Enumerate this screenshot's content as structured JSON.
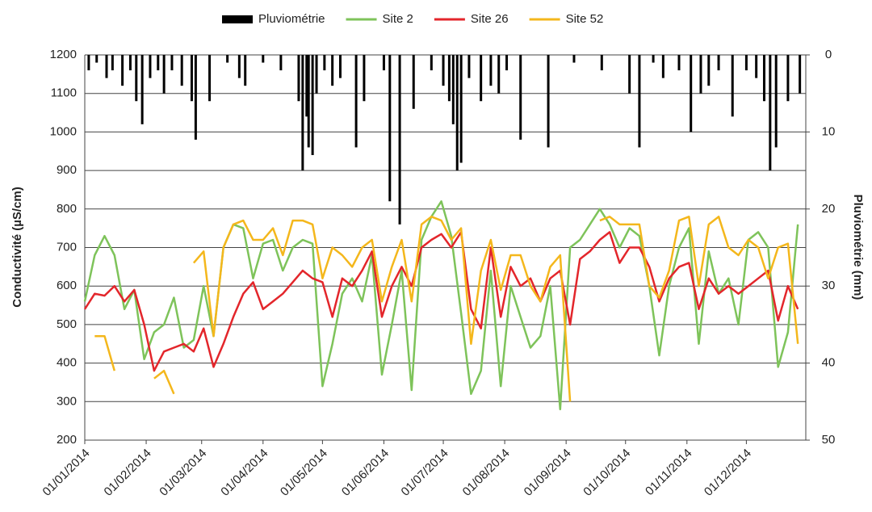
{
  "chart_data": {
    "type": "line",
    "y_label": "Conductivité (µS/cm)",
    "y2_label": "Pluviométrie (mm)",
    "legend_position": "top",
    "grid": true,
    "xlim": [
      "2014-01-01",
      "2014-12-31"
    ],
    "xticks": [
      {
        "value": "2014-01-01",
        "label": "01/01/2014"
      },
      {
        "value": "2014-02-01",
        "label": "01/02/2014"
      },
      {
        "value": "2014-03-01",
        "label": "01/03/2014"
      },
      {
        "value": "2014-04-01",
        "label": "01/04/2014"
      },
      {
        "value": "2014-05-01",
        "label": "01/05/2014"
      },
      {
        "value": "2014-06-01",
        "label": "01/06/2014"
      },
      {
        "value": "2014-07-01",
        "label": "01/07/2014"
      },
      {
        "value": "2014-08-01",
        "label": "01/08/2014"
      },
      {
        "value": "2014-09-01",
        "label": "01/09/2014"
      },
      {
        "value": "2014-10-01",
        "label": "01/10/2014"
      },
      {
        "value": "2014-11-01",
        "label": "01/11/2014"
      },
      {
        "value": "2014-12-01",
        "label": "01/12/2014"
      }
    ],
    "ylim": [
      200,
      1200
    ],
    "yticks": [
      200,
      300,
      400,
      500,
      600,
      700,
      800,
      900,
      1000,
      1100,
      1200
    ],
    "y2lim": [
      0,
      50
    ],
    "y2ticks": [
      0,
      10,
      20,
      30,
      40,
      50
    ],
    "y2_inverted": true,
    "x": [
      "2014-01-01",
      "2014-01-06",
      "2014-01-11",
      "2014-01-16",
      "2014-01-21",
      "2014-01-26",
      "2014-01-31",
      "2014-02-05",
      "2014-02-10",
      "2014-02-15",
      "2014-02-20",
      "2014-02-25",
      "2014-03-02",
      "2014-03-07",
      "2014-03-12",
      "2014-03-17",
      "2014-03-22",
      "2014-03-27",
      "2014-04-01",
      "2014-04-06",
      "2014-04-11",
      "2014-04-16",
      "2014-04-21",
      "2014-04-26",
      "2014-05-01",
      "2014-05-06",
      "2014-05-11",
      "2014-05-16",
      "2014-05-21",
      "2014-05-26",
      "2014-05-31",
      "2014-06-05",
      "2014-06-10",
      "2014-06-15",
      "2014-06-20",
      "2014-06-25",
      "2014-06-30",
      "2014-07-05",
      "2014-07-10",
      "2014-07-15",
      "2014-07-20",
      "2014-07-25",
      "2014-07-30",
      "2014-08-04",
      "2014-08-09",
      "2014-08-14",
      "2014-08-19",
      "2014-08-24",
      "2014-08-29",
      "2014-09-03",
      "2014-09-08",
      "2014-09-13",
      "2014-09-18",
      "2014-09-23",
      "2014-09-28",
      "2014-10-03",
      "2014-10-08",
      "2014-10-13",
      "2014-10-18",
      "2014-10-23",
      "2014-10-28",
      "2014-11-02",
      "2014-11-07",
      "2014-11-12",
      "2014-11-17",
      "2014-11-22",
      "2014-11-27",
      "2014-12-02",
      "2014-12-07",
      "2014-12-12",
      "2014-12-17",
      "2014-12-22",
      "2014-12-27"
    ],
    "rain": {
      "name": "Pluviométrie",
      "color": "#000000",
      "axis": "y2",
      "type": "bar",
      "x": [
        "2014-01-03",
        "2014-01-07",
        "2014-01-12",
        "2014-01-15",
        "2014-01-20",
        "2014-01-24",
        "2014-01-27",
        "2014-01-30",
        "2014-02-03",
        "2014-02-07",
        "2014-02-10",
        "2014-02-14",
        "2014-02-19",
        "2014-02-24",
        "2014-02-26",
        "2014-03-05",
        "2014-03-14",
        "2014-03-20",
        "2014-03-23",
        "2014-04-01",
        "2014-04-10",
        "2014-04-19",
        "2014-04-21",
        "2014-04-23",
        "2014-04-24",
        "2014-04-26",
        "2014-04-28",
        "2014-05-02",
        "2014-05-06",
        "2014-05-10",
        "2014-05-18",
        "2014-05-22",
        "2014-06-01",
        "2014-06-04",
        "2014-06-09",
        "2014-06-16",
        "2014-06-25",
        "2014-07-01",
        "2014-07-04",
        "2014-07-06",
        "2014-07-08",
        "2014-07-10",
        "2014-07-14",
        "2014-07-20",
        "2014-07-25",
        "2014-07-29",
        "2014-08-02",
        "2014-08-09",
        "2014-08-23",
        "2014-09-05",
        "2014-09-19",
        "2014-10-03",
        "2014-10-08",
        "2014-10-15",
        "2014-10-20",
        "2014-10-28",
        "2014-11-03",
        "2014-11-08",
        "2014-11-12",
        "2014-11-17",
        "2014-11-24",
        "2014-12-01",
        "2014-12-06",
        "2014-12-10",
        "2014-12-13",
        "2014-12-16",
        "2014-12-22",
        "2014-12-28"
      ],
      "values": [
        2,
        1,
        3,
        2,
        4,
        2,
        6,
        9,
        3,
        2,
        5,
        2,
        4,
        6,
        11,
        6,
        1,
        3,
        4,
        1,
        2,
        6,
        15,
        8,
        12,
        13,
        5,
        2,
        4,
        3,
        12,
        6,
        2,
        19,
        22,
        7,
        2,
        4,
        6,
        9,
        15,
        14,
        3,
        6,
        4,
        5,
        2,
        11,
        12,
        1,
        2,
        5,
        12,
        1,
        3,
        2,
        10,
        5,
        4,
        2,
        8,
        2,
        3,
        6,
        15,
        12,
        6,
        5
      ]
    },
    "series": [
      {
        "name": "Site 2",
        "color": "#7ec35a",
        "values": [
          560,
          680,
          730,
          680,
          540,
          590,
          410,
          480,
          500,
          570,
          440,
          460,
          600,
          470,
          700,
          760,
          750,
          620,
          710,
          720,
          640,
          700,
          720,
          710,
          340,
          450,
          580,
          620,
          560,
          680,
          370,
          500,
          640,
          330,
          720,
          780,
          820,
          730,
          530,
          320,
          380,
          640,
          340,
          600,
          520,
          440,
          470,
          600,
          280,
          700,
          720,
          760,
          800,
          760,
          700,
          750,
          730,
          600,
          420,
          600,
          700,
          750,
          450,
          690,
          580,
          620,
          500,
          720,
          740,
          700,
          390,
          480,
          760
        ]
      },
      {
        "name": "Site 26",
        "color": "#e3262b",
        "values": [
          540,
          580,
          575,
          600,
          560,
          590,
          500,
          380,
          430,
          440,
          450,
          430,
          490,
          390,
          450,
          520,
          580,
          610,
          540,
          560,
          580,
          610,
          640,
          620,
          610,
          520,
          620,
          600,
          640,
          690,
          520,
          600,
          650,
          600,
          700,
          720,
          735,
          700,
          740,
          540,
          490,
          700,
          520,
          650,
          600,
          620,
          560,
          620,
          640,
          500,
          670,
          690,
          720,
          740,
          660,
          700,
          700,
          650,
          560,
          620,
          650,
          660,
          540,
          620,
          580,
          600,
          580,
          600,
          620,
          640,
          510,
          600,
          540
        ]
      },
      {
        "name": "Site 52",
        "color": "#f4b71c",
        "values": [
          null,
          470,
          470,
          380,
          null,
          420,
          null,
          360,
          380,
          320,
          null,
          660,
          690,
          470,
          700,
          760,
          770,
          720,
          720,
          750,
          680,
          770,
          770,
          760,
          620,
          700,
          680,
          650,
          700,
          720,
          560,
          650,
          720,
          560,
          760,
          780,
          770,
          720,
          750,
          450,
          640,
          720,
          590,
          680,
          680,
          600,
          560,
          650,
          680,
          300,
          null,
          null,
          770,
          780,
          760,
          760,
          760,
          600,
          570,
          640,
          770,
          780,
          600,
          760,
          780,
          700,
          680,
          720,
          700,
          620,
          700,
          710,
          450
        ]
      }
    ]
  }
}
